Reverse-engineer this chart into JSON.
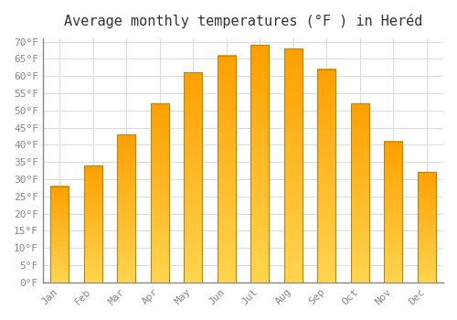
{
  "title": "Average monthly temperatures (°F ) in Heréd",
  "months": [
    "Jan",
    "Feb",
    "Mar",
    "Apr",
    "May",
    "Jun",
    "Jul",
    "Aug",
    "Sep",
    "Oct",
    "Nov",
    "Dec"
  ],
  "values": [
    28,
    34,
    43,
    52,
    61,
    66,
    69,
    68,
    62,
    52,
    41,
    32
  ],
  "bar_color_bottom": "#FFD54F",
  "bar_color_top": "#FFA000",
  "bar_edge_color": "#B8860B",
  "background_color": "#FFFFFF",
  "grid_color": "#DDDDDD",
  "text_color": "#888888",
  "title_color": "#333333",
  "ylim": [
    0,
    70
  ],
  "ytick_step": 5,
  "title_fontsize": 11,
  "tick_fontsize": 8,
  "bar_width": 0.55
}
